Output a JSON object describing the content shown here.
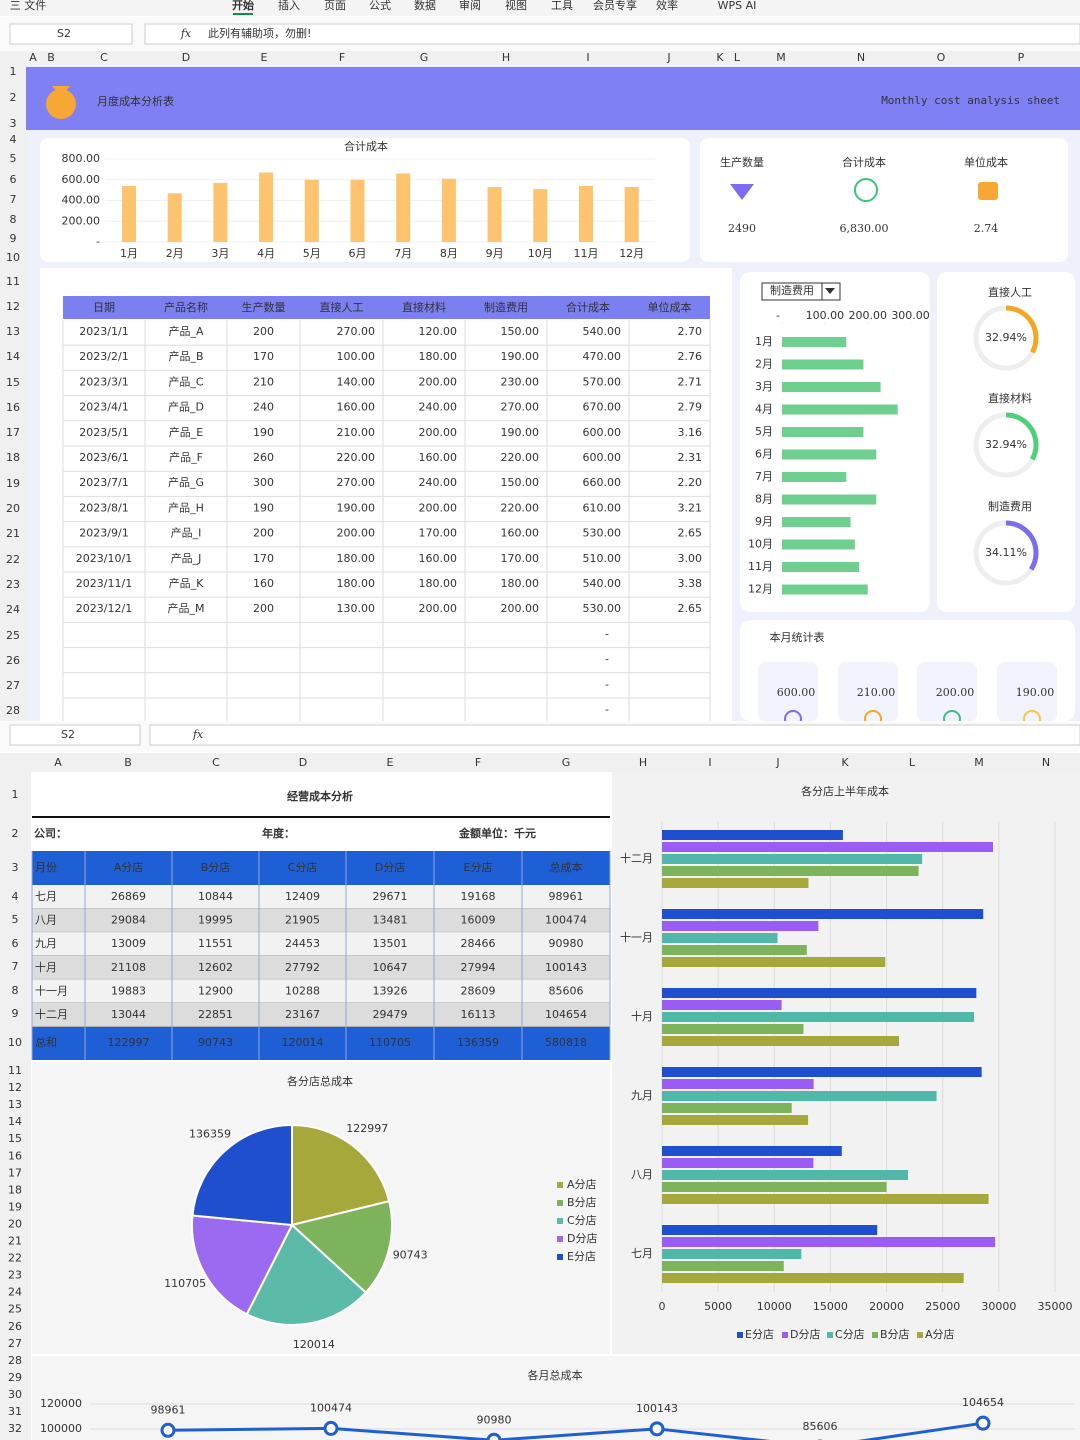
{
  "toolbar": {
    "menu": [
      "三 文件",
      "开始",
      "插入",
      "页面",
      "公式",
      "数据",
      "审阅",
      "视图",
      "工具",
      "会员专享",
      "效率",
      "WPS AI"
    ],
    "fx": "fx"
  },
  "sheet1": {
    "cell_ref": "S2",
    "formula": "此列有辅助项，勿删!",
    "columns": [
      "A",
      "B",
      "C",
      "D",
      "E",
      "F",
      "G",
      "H",
      "I",
      "J",
      "K",
      "L",
      "M",
      "N",
      "O",
      "P"
    ],
    "rows": [
      1,
      2,
      3,
      4,
      5,
      6,
      7,
      8,
      9,
      10,
      11,
      12,
      13,
      14,
      15,
      16,
      17,
      18,
      19,
      20,
      21,
      22,
      23,
      24,
      25,
      26,
      27,
      28
    ],
    "title": "月度成本分析表",
    "subtitle": "Monthly cost analysis sheet",
    "cost_chart": {
      "type": "bar",
      "title": "合计成本",
      "categories": [
        "1月",
        "2月",
        "3月",
        "4月",
        "5月",
        "6月",
        "7月",
        "8月",
        "9月",
        "10月",
        "11月",
        "12月"
      ],
      "values": [
        540,
        470,
        570,
        670,
        600,
        600,
        660,
        610,
        530,
        510,
        540,
        530
      ],
      "color": "#fdc36e",
      "ylim": [
        0,
        800
      ],
      "yticks": [
        {
          "value": 0,
          "label": "-"
        },
        {
          "value": 200,
          "label": "200.00"
        },
        {
          "value": 400,
          "label": "400.00"
        },
        {
          "value": 600,
          "label": "600.00"
        },
        {
          "value": 800,
          "label": "800.00"
        }
      ]
    },
    "kpis": [
      {
        "label": "生产数量",
        "value": "2490"
      },
      {
        "label": "合计成本",
        "value": "6,830.00"
      },
      {
        "label": "单位成本",
        "value": "2.74"
      }
    ],
    "table": {
      "header": [
        "日期",
        "产品名称",
        "生产数量",
        "直接人工",
        "直接材料",
        "制造费用",
        "合计成本",
        "单位成本"
      ],
      "rows": [
        [
          "2023/1/1",
          "产品_A",
          "200",
          "270.00",
          "120.00",
          "150.00",
          "540.00",
          "2.70"
        ],
        [
          "2023/2/1",
          "产品_B",
          "170",
          "100.00",
          "180.00",
          "190.00",
          "470.00",
          "2.76"
        ],
        [
          "2023/3/1",
          "产品_C",
          "210",
          "140.00",
          "200.00",
          "230.00",
          "570.00",
          "2.71"
        ],
        [
          "2023/4/1",
          "产品_D",
          "240",
          "160.00",
          "240.00",
          "270.00",
          "670.00",
          "2.79"
        ],
        [
          "2023/5/1",
          "产品_E",
          "190",
          "210.00",
          "200.00",
          "190.00",
          "600.00",
          "3.16"
        ],
        [
          "2023/6/1",
          "产品_F",
          "260",
          "220.00",
          "160.00",
          "220.00",
          "600.00",
          "2.31"
        ],
        [
          "2023/7/1",
          "产品_G",
          "300",
          "270.00",
          "240.00",
          "150.00",
          "660.00",
          "2.20"
        ],
        [
          "2023/8/1",
          "产品_H",
          "190",
          "190.00",
          "200.00",
          "220.00",
          "610.00",
          "3.21"
        ],
        [
          "2023/9/1",
          "产品_I",
          "200",
          "200.00",
          "170.00",
          "160.00",
          "530.00",
          "2.65"
        ],
        [
          "2023/10/1",
          "产品_J",
          "170",
          "180.00",
          "160.00",
          "170.00",
          "510.00",
          "3.00"
        ],
        [
          "2023/11/1",
          "产品_K",
          "160",
          "180.00",
          "180.00",
          "180.00",
          "540.00",
          "3.38"
        ],
        [
          "2023/12/1",
          "产品_M",
          "200",
          "130.00",
          "200.00",
          "200.00",
          "530.00",
          "2.65"
        ]
      ],
      "blank_totals": [
        "-",
        "-",
        "-",
        "-"
      ]
    },
    "expense_chart": {
      "type": "hbar",
      "selector": "制造费用",
      "categories": [
        "1月",
        "2月",
        "3月",
        "4月",
        "5月",
        "6月",
        "7月",
        "8月",
        "9月",
        "10月",
        "11月",
        "12月"
      ],
      "values": [
        150,
        190,
        230,
        270,
        190,
        220,
        150,
        220,
        160,
        170,
        180,
        200
      ],
      "color": "#6fcf8e",
      "xlim": [
        0,
        350
      ],
      "xticks": [
        {
          "value": 0,
          "label": "-"
        },
        {
          "value": 100,
          "label": "100.00"
        },
        {
          "value": 200,
          "label": "200.00"
        },
        {
          "value": 300,
          "label": "300.00"
        }
      ]
    },
    "ratios": {
      "type": "donut",
      "categories": [
        "直接人工",
        "直接材料",
        "制造费用"
      ],
      "values": [
        32.94,
        32.94,
        34.11
      ],
      "value_labels": [
        "32.94%",
        "32.94%",
        "34.11%"
      ],
      "colors": [
        "#f5a623",
        "#4fcf7a",
        "#7b6cf0"
      ]
    },
    "monthly_stats": {
      "title": "本月统计表",
      "values": [
        "600.00",
        "210.00",
        "200.00",
        "190.00"
      ]
    }
  },
  "sheet2": {
    "cell_ref": "S2",
    "columns": [
      "A",
      "B",
      "C",
      "D",
      "E",
      "F",
      "G",
      "H",
      "I",
      "J",
      "K",
      "L",
      "M",
      "N"
    ],
    "rows": [
      1,
      2,
      3,
      4,
      5,
      6,
      7,
      8,
      9,
      10,
      11,
      12,
      13,
      14,
      15,
      16,
      17,
      18,
      19,
      20,
      21,
      22,
      23,
      24,
      25,
      26,
      27,
      28,
      29,
      30,
      31,
      32
    ],
    "title": "经营成本分析",
    "company": "公司：",
    "year": "年度：",
    "unit": "金额单位：千元",
    "table": {
      "header": [
        "月份",
        "A分店",
        "B分店",
        "C分店",
        "D分店",
        "E分店",
        "总成本"
      ],
      "rows": [
        [
          "七月",
          26869,
          10844,
          12409,
          29671,
          19168,
          98961
        ],
        [
          "八月",
          29084,
          19995,
          21905,
          13481,
          16009,
          100474
        ],
        [
          "九月",
          13009,
          11551,
          24453,
          13501,
          28466,
          90980
        ],
        [
          "十月",
          21108,
          12602,
          27792,
          10647,
          27994,
          100143
        ],
        [
          "十一月",
          19883,
          12900,
          10288,
          13926,
          28609,
          85606
        ],
        [
          "十二月",
          13044,
          22851,
          23167,
          29479,
          16113,
          104654
        ]
      ],
      "total": [
        "总和",
        122997,
        90743,
        120014,
        110705,
        136359,
        580818
      ]
    },
    "pie": {
      "type": "pie",
      "title": "各分店总成本",
      "categories": [
        "A分店",
        "B分店",
        "C分店",
        "D分店",
        "E分店"
      ],
      "values": [
        122997,
        90743,
        120014,
        110705,
        136359
      ],
      "colors": [
        "#a7a83b",
        "#7cb35b",
        "#5bbaa8",
        "#9b6af0",
        "#1f4fcf"
      ]
    },
    "branch_chart": {
      "type": "hbar",
      "title": "各分店上半年成本",
      "categories": [
        "七月",
        "八月",
        "九月",
        "十月",
        "十一月",
        "十二月"
      ],
      "series": [
        {
          "name": "E分店",
          "color": "#1f4fcf",
          "values": [
            19168,
            16009,
            28466,
            27994,
            28609,
            16113
          ]
        },
        {
          "name": "D分店",
          "color": "#9b5cf5",
          "values": [
            29671,
            13481,
            13501,
            10647,
            13926,
            29479
          ]
        },
        {
          "name": "C分店",
          "color": "#4fb8a8",
          "values": [
            12409,
            21905,
            24453,
            27792,
            10288,
            23167
          ]
        },
        {
          "name": "B分店",
          "color": "#7cb35b",
          "values": [
            10844,
            19995,
            11551,
            12602,
            12900,
            22851
          ]
        },
        {
          "name": "A分店",
          "color": "#a7a83b",
          "values": [
            26869,
            29084,
            13009,
            21108,
            19883,
            13044
          ]
        }
      ],
      "xlim": [
        0,
        35000
      ],
      "xticks": [
        0,
        5000,
        10000,
        15000,
        20000,
        25000,
        30000,
        35000
      ]
    },
    "total_chart": {
      "type": "line",
      "title": "各月总成本",
      "values": [
        98961,
        100474,
        90980,
        100143,
        85606,
        104654
      ],
      "color": "#1f5fcf",
      "ylim": [
        0,
        130000
      ],
      "yticks": [
        100000,
        120000
      ]
    }
  }
}
